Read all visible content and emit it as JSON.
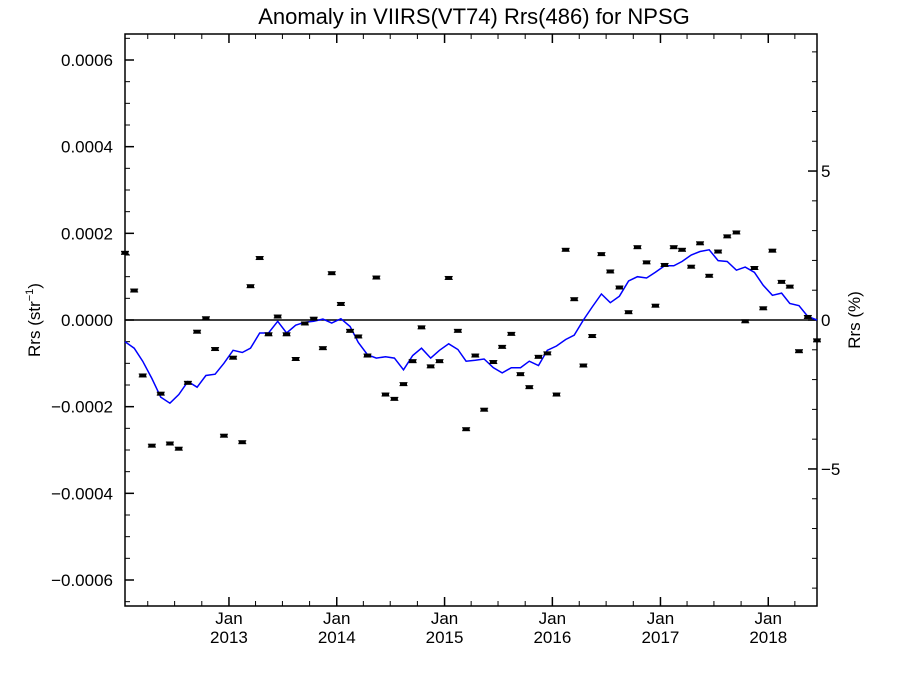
{
  "chart_data": {
    "type": "scatter",
    "title": "Anomaly in VIIRS(VT74) Rrs(486) for NPSG",
    "ylabel_left": {
      "text": "Rrs (str",
      "sup": "−1",
      "suffix": ")"
    },
    "ylabel_right": "Rrs (%)",
    "xlim": [
      "2012-01-15",
      "2018-06-15"
    ],
    "ylim_left": [
      -0.00066,
      0.00066
    ],
    "ylim_right": [
      -9.6,
      9.6
    ],
    "x_ticks": [
      {
        "month": "Jan",
        "year": "2013",
        "date": "2013-01-01"
      },
      {
        "month": "Jan",
        "year": "2014",
        "date": "2014-01-01"
      },
      {
        "month": "Jan",
        "year": "2015",
        "date": "2015-01-01"
      },
      {
        "month": "Jan",
        "year": "2016",
        "date": "2016-01-01"
      },
      {
        "month": "Jan",
        "year": "2017",
        "date": "2017-01-01"
      },
      {
        "month": "Jan",
        "year": "2018",
        "date": "2018-01-01"
      }
    ],
    "y_ticks_left": [
      {
        "value": 0.0006,
        "label": "0.0006"
      },
      {
        "value": 0.0004,
        "label": "0.0004"
      },
      {
        "value": 0.0002,
        "label": "0.0002"
      },
      {
        "value": 0.0,
        "label": "0.0000"
      },
      {
        "value": -0.0002,
        "label": "−0.0002"
      },
      {
        "value": -0.0004,
        "label": "−0.0004"
      },
      {
        "value": -0.0006,
        "label": "−0.0006"
      }
    ],
    "y_ticks_right": [
      {
        "value": 5,
        "label": "5"
      },
      {
        "value": 0,
        "label": "0"
      },
      {
        "value": -5,
        "label": "−5"
      }
    ],
    "zero_line": true,
    "grid": false,
    "series": [
      {
        "kind": "points",
        "color": "#000000",
        "x": [
          "2012-01-15",
          "2012-02-15",
          "2012-03-15",
          "2012-04-15",
          "2012-05-15",
          "2012-06-15",
          "2012-07-15",
          "2012-08-15",
          "2012-09-15",
          "2012-10-15",
          "2012-11-15",
          "2012-12-15",
          "2013-01-15",
          "2013-02-15",
          "2013-03-15",
          "2013-04-15",
          "2013-05-15",
          "2013-06-15",
          "2013-07-15",
          "2013-08-15",
          "2013-09-15",
          "2013-10-15",
          "2013-11-15",
          "2013-12-15",
          "2014-01-15",
          "2014-02-15",
          "2014-03-15",
          "2014-04-15",
          "2014-05-15",
          "2014-06-15",
          "2014-07-15",
          "2014-08-15",
          "2014-09-15",
          "2014-10-15",
          "2014-11-15",
          "2014-12-15",
          "2015-01-15",
          "2015-02-15",
          "2015-03-15",
          "2015-04-15",
          "2015-05-15",
          "2015-06-15",
          "2015-07-15",
          "2015-08-15",
          "2015-09-15",
          "2015-10-15",
          "2015-11-15",
          "2015-12-15",
          "2016-01-15",
          "2016-02-15",
          "2016-03-15",
          "2016-04-15",
          "2016-05-15",
          "2016-06-15",
          "2016-07-15",
          "2016-08-15",
          "2016-09-15",
          "2016-10-15",
          "2016-11-15",
          "2016-12-15",
          "2017-01-15",
          "2017-02-15",
          "2017-03-15",
          "2017-04-15",
          "2017-05-15",
          "2017-06-15",
          "2017-07-15",
          "2017-08-15",
          "2017-09-15",
          "2017-10-15",
          "2017-11-15",
          "2017-12-15",
          "2018-01-15",
          "2018-02-15",
          "2018-03-15",
          "2018-04-15",
          "2018-05-15",
          "2018-06-15"
        ],
        "y": [
          0.000155,
          6.8e-05,
          -0.000128,
          -0.00029,
          -0.00017,
          -0.000285,
          -0.000297,
          -0.000145,
          -2.7e-05,
          4e-06,
          -6.7e-05,
          -0.000267,
          -8.7e-05,
          -0.000282,
          7.8e-05,
          0.000143,
          -3.3e-05,
          8e-06,
          -3.3e-05,
          -9e-05,
          -8e-06,
          3e-06,
          -6.5e-05,
          0.000108,
          3.7e-05,
          -2.5e-05,
          -3.8e-05,
          -8.2e-05,
          9.8e-05,
          -0.000172,
          -0.000182,
          -0.000148,
          -9.5e-05,
          -1.7e-05,
          -0.000107,
          -9.5e-05,
          9.7e-05,
          -2.5e-05,
          -0.000252,
          -8.2e-05,
          -0.000207,
          -9.7e-05,
          -6.2e-05,
          -3.2e-05,
          -0.000125,
          -0.000155,
          -8.5e-05,
          -7.7e-05,
          -0.000172,
          0.000162,
          4.8e-05,
          -0.000105,
          -3.7e-05,
          0.000152,
          0.000112,
          7.5e-05,
          1.8e-05,
          0.000168,
          0.000133,
          3.3e-05,
          0.000127,
          0.000168,
          0.000162,
          0.000123,
          0.000177,
          0.000102,
          0.000158,
          0.000193,
          0.000202,
          -3e-06,
          0.00012,
          2.7e-05,
          0.00016,
          8.8e-05,
          7.7e-05,
          -7.2e-05,
          7e-06,
          -4.7e-05
        ]
      },
      {
        "kind": "line",
        "color": "#0000ff",
        "x": [
          "2012-01-15",
          "2012-02-15",
          "2012-03-15",
          "2012-04-15",
          "2012-05-15",
          "2012-06-15",
          "2012-07-15",
          "2012-08-15",
          "2012-09-15",
          "2012-10-15",
          "2012-11-15",
          "2012-12-15",
          "2013-01-15",
          "2013-02-15",
          "2013-03-15",
          "2013-04-15",
          "2013-05-15",
          "2013-06-15",
          "2013-07-15",
          "2013-08-15",
          "2013-09-15",
          "2013-10-15",
          "2013-11-15",
          "2013-12-15",
          "2014-01-15",
          "2014-02-15",
          "2014-03-15",
          "2014-04-15",
          "2014-05-15",
          "2014-06-15",
          "2014-07-15",
          "2014-08-15",
          "2014-09-15",
          "2014-10-15",
          "2014-11-15",
          "2014-12-15",
          "2015-01-15",
          "2015-02-15",
          "2015-03-15",
          "2015-04-15",
          "2015-05-15",
          "2015-06-15",
          "2015-07-15",
          "2015-08-15",
          "2015-09-15",
          "2015-10-15",
          "2015-11-15",
          "2015-12-15",
          "2016-01-15",
          "2016-02-15",
          "2016-03-15",
          "2016-04-15",
          "2016-05-15",
          "2016-06-15",
          "2016-07-15",
          "2016-08-15",
          "2016-09-15",
          "2016-10-15",
          "2016-11-15",
          "2016-12-15",
          "2017-01-15",
          "2017-02-15",
          "2017-03-15",
          "2017-04-15",
          "2017-05-15",
          "2017-06-15",
          "2017-07-15",
          "2017-08-15",
          "2017-09-15",
          "2017-10-15",
          "2017-11-15",
          "2017-12-15",
          "2018-01-15",
          "2018-02-15",
          "2018-03-15",
          "2018-04-15",
          "2018-05-15",
          "2018-06-15"
        ],
        "y": [
          -5e-05,
          -6.5e-05,
          -9.5e-05,
          -0.000135,
          -0.000178,
          -0.000192,
          -0.000172,
          -0.000142,
          -0.000155,
          -0.000128,
          -0.000125,
          -0.0001,
          -7e-05,
          -7.5e-05,
          -6.5e-05,
          -3e-05,
          -3e-05,
          -3e-06,
          -3e-05,
          -1.2e-05,
          -5e-06,
          -3e-06,
          2e-06,
          -7e-06,
          3e-06,
          -1.5e-05,
          -5.2e-05,
          -8e-05,
          -8.8e-05,
          -8.5e-05,
          -8.8e-05,
          -0.000115,
          -8.2e-05,
          -6.5e-05,
          -8.8e-05,
          -7e-05,
          -5.5e-05,
          -6.8e-05,
          -9.5e-05,
          -9.3e-05,
          -9e-05,
          -0.00011,
          -0.000122,
          -0.00011,
          -0.00011,
          -9.5e-05,
          -0.000105,
          -7e-05,
          -6e-05,
          -4.5e-05,
          -3.5e-05,
          0.0,
          3e-05,
          6e-05,
          4e-05,
          5.5e-05,
          9e-05,
          0.0001,
          9.7e-05,
          0.00011,
          0.000125,
          0.000125,
          0.000135,
          0.00015,
          0.000158,
          0.000162,
          0.000137,
          0.000135,
          0.000115,
          0.000122,
          0.00011,
          8e-05,
          5.7e-05,
          6.2e-05,
          3.8e-05,
          3.3e-05,
          8e-06,
          0.0
        ]
      }
    ]
  }
}
